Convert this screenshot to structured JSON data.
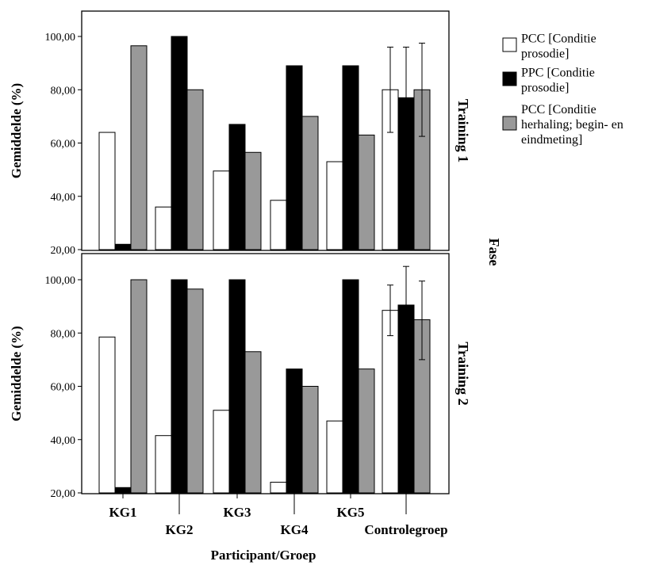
{
  "chart_data": {
    "type": "bar",
    "xlabel": "Participant/Groep",
    "ylabel": "Gemiddelde (%)",
    "facet_title": "Fase",
    "categories": [
      "KG1",
      "KG2",
      "KG3",
      "KG4",
      "KG5",
      "Controlegroep"
    ],
    "ylim": [
      20,
      100
    ],
    "yticks": [
      "20,00",
      "40,00",
      "60,00",
      "80,00",
      "100,00"
    ],
    "legend_placement": "top-right",
    "grid": false,
    "series": [
      {
        "name_lines": [
          "PCC [Conditie",
          "prosodie]"
        ],
        "color": "#ffffff"
      },
      {
        "name_lines": [
          "PPC [Conditie",
          "prosodie]"
        ],
        "color": "#000000"
      },
      {
        "name_lines": [
          "PCC [Conditie",
          "herhaling; begin- en",
          "eindmeting]"
        ],
        "color": "#999999"
      }
    ],
    "panels": [
      {
        "label": "Training 1",
        "values": [
          [
            64,
            36,
            49.5,
            38.5,
            53,
            80
          ],
          [
            22,
            100,
            67,
            89,
            89,
            77
          ],
          [
            96.5,
            80,
            56.5,
            70,
            63,
            80
          ]
        ],
        "errors": [
          [
            null,
            null,
            null,
            null,
            null,
            [
              64,
              96
            ]
          ],
          [
            null,
            null,
            null,
            null,
            null,
            [
              57,
              96
            ]
          ],
          [
            null,
            null,
            null,
            null,
            null,
            [
              62.5,
              97.5
            ]
          ]
        ]
      },
      {
        "label": "Training 2",
        "values": [
          [
            78.5,
            41.5,
            51,
            24,
            47,
            88.5
          ],
          [
            22,
            100,
            100,
            66.5,
            100,
            90.5
          ],
          [
            100,
            96.5,
            73,
            60,
            66.5,
            85
          ]
        ],
        "errors": [
          [
            null,
            null,
            null,
            null,
            null,
            [
              79,
              98
            ]
          ],
          [
            null,
            null,
            null,
            null,
            null,
            [
              76,
              105
            ]
          ],
          [
            null,
            null,
            null,
            null,
            null,
            [
              70,
              99.5
            ]
          ]
        ]
      }
    ]
  }
}
